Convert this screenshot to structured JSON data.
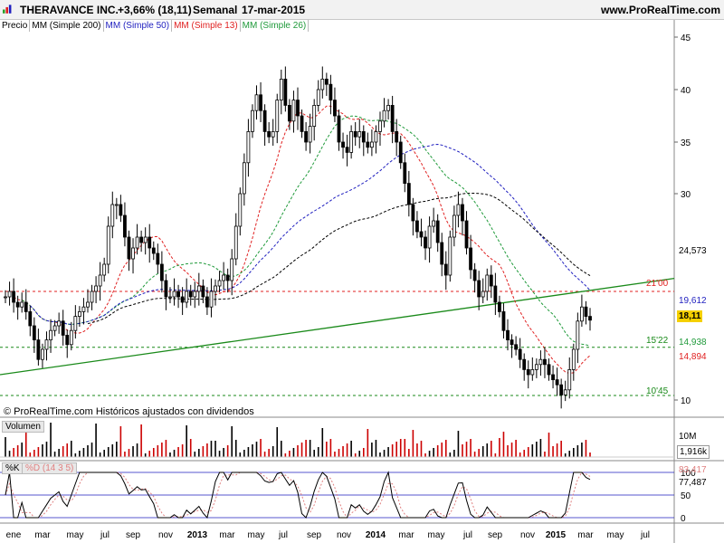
{
  "header": {
    "ticker": "THERAVANCE INC.",
    "change": "+3,66% (18,11)",
    "period": "Semanal",
    "date": "17-mar-2015",
    "site": "www.ProRealTime.com"
  },
  "indicators": {
    "price": "Precio",
    "ma200": "MM (Simple 200)",
    "ma50": "MM (Simple 50)",
    "ma13": "MM (Simple 13)",
    "ma26": "MM (Simple 26)"
  },
  "colors": {
    "ma200": "#000000",
    "ma50": "#1f1fbf",
    "ma13": "#e02020",
    "ma26": "#1f9a3a",
    "trend": "#1a8a1a",
    "price_tag": "#f5d000"
  },
  "copyright": "© ProRealTime.com  Históricos ajustados con dividendos",
  "volume_panel": {
    "label": "Volumen",
    "scale_label": "10M",
    "last_value": "1,916k"
  },
  "stoch_panel": {
    "label_k": "%K",
    "label_d": "%D (14 3 5)",
    "value_d": "83,417",
    "value_k": "77,487",
    "ticks": [
      "100",
      "50",
      "0"
    ]
  },
  "price_axis": {
    "ticks": [
      "45",
      "40",
      "35",
      "30",
      "10"
    ],
    "ma200_value": "24,573",
    "ma50_value": "19,612",
    "last_price": "18,11",
    "ma26_value": "14,938",
    "ma13_value": "14,894"
  },
  "level_labels": {
    "resistance": "21'00",
    "support1": "15'22",
    "support2": "10'45"
  },
  "x_axis": {
    "labels": [
      "ene",
      "mar",
      "may",
      "jul",
      "sep",
      "nov",
      "2013",
      "mar",
      "may",
      "jul",
      "sep",
      "nov",
      "2014",
      "mar",
      "may",
      "jul",
      "sep",
      "nov",
      "2015",
      "mar",
      "may",
      "jul"
    ]
  },
  "chart_data": {
    "type": "candlestick",
    "title": "THERAVANCE INC.",
    "period": "weekly",
    "y_range": [
      10,
      47
    ],
    "x_range": [
      "2012-01",
      "2015-07"
    ],
    "weekly_close_approx": [
      20.5,
      21,
      20,
      19.5,
      20,
      19,
      17.5,
      16,
      14,
      15,
      16,
      17,
      17.5,
      18,
      16.5,
      15.5,
      17,
      18.5,
      19,
      19.5,
      20,
      21,
      21.5,
      22.5,
      23.5,
      27,
      29,
      29,
      28,
      26,
      24,
      25,
      26,
      25.5,
      26,
      25,
      24.5,
      23.5,
      22,
      20.5,
      20.5,
      21,
      20.5,
      20,
      21,
      20.5,
      21,
      21.5,
      20.5,
      19.5,
      21,
      21.5,
      22,
      22.5,
      22,
      24,
      27,
      30,
      33,
      36,
      38,
      39.5,
      38,
      36,
      35.5,
      36,
      39,
      41,
      38.5,
      37,
      39,
      37.5,
      36,
      35,
      36.5,
      38.5,
      40,
      41,
      40.5,
      39,
      37.5,
      35,
      34.5,
      34,
      36,
      35.5,
      36,
      35,
      34.5,
      35,
      36,
      37,
      38,
      38.5,
      36,
      35,
      33,
      31,
      29,
      27.5,
      26.5,
      26,
      25,
      27,
      27.5,
      25.5,
      23.5,
      22.5,
      26,
      28,
      29,
      27.5,
      25,
      23,
      22,
      20.5,
      21,
      22.5,
      21.5,
      20,
      19,
      17,
      16,
      15.5,
      15,
      14,
      13,
      12.5,
      13,
      13.5,
      14,
      13.5,
      12.5,
      12,
      11.5,
      10.5,
      11,
      13,
      15,
      18,
      19.5,
      18.5,
      18.1
    ],
    "moving_averages": {
      "MM (Simple 200)": {
        "last": 24.573
      },
      "MM (Simple 50)": {
        "last": 19.612
      },
      "MM (Simple 13)": {
        "last": 14.894
      },
      "MM (Simple 26)": {
        "last": 14.938
      }
    },
    "horizontal_levels": [
      21.0,
      15.22,
      10.45
    ],
    "trendline": {
      "from": [
        "2012-01",
        12.5
      ],
      "to": [
        "2015-07",
        22.2
      ]
    },
    "last_price": 18.11,
    "volume": {
      "last": "1,916k",
      "max_label": "10M"
    },
    "stochastic": {
      "k": 77.487,
      "d": 83.417,
      "params": "14 3 5"
    }
  }
}
